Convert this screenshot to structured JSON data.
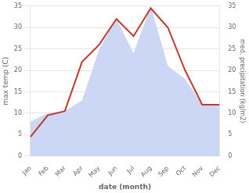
{
  "chart_data": {
    "type": "line",
    "xlabel": "date (month)",
    "ylabel": "max temp (C)",
    "y2label": "med. precipitation (kg/m2)",
    "categories": [
      "Jan",
      "Feb",
      "Mar",
      "Apr",
      "May",
      "Jun",
      "Jul",
      "Aug",
      "Sep",
      "Oct",
      "Nov",
      "Dec"
    ],
    "series": [
      {
        "type": "area",
        "color": "#ccd6f5",
        "axis": "y2",
        "values": [
          8.0,
          10.0,
          10.5,
          13.0,
          25.0,
          32.0,
          24.0,
          35.0,
          21.0,
          18.0,
          12.0,
          12.0
        ]
      },
      {
        "type": "line",
        "color": "#c0392b",
        "axis": "y",
        "values": [
          4.5,
          9.5,
          10.5,
          22.0,
          26.0,
          32.0,
          28.0,
          34.5,
          30.0,
          20.0,
          12.0,
          12.0
        ]
      }
    ],
    "ylim": [
      0,
      35
    ],
    "yticks": [
      0,
      5,
      10,
      15,
      20,
      25,
      30,
      35
    ],
    "y2lim": [
      0,
      35
    ],
    "y2ticks": [
      0,
      5,
      10,
      15,
      20,
      25,
      30,
      35
    ],
    "grid": true
  }
}
